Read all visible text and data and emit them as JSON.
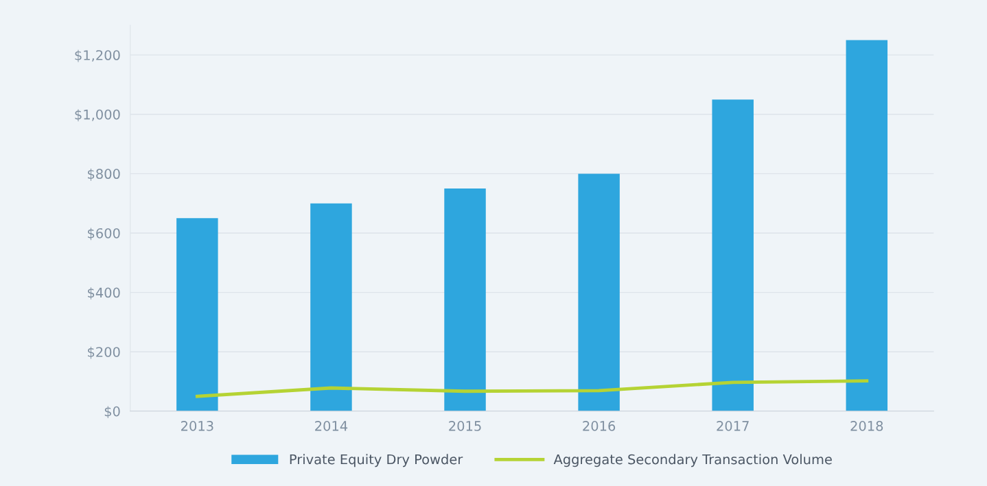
{
  "chart_data": {
    "type": "bar",
    "categories": [
      "2013",
      "2014",
      "2015",
      "2016",
      "2017",
      "2018"
    ],
    "series": [
      {
        "name": "Private Equity Dry Powder",
        "color": "#2ea6de",
        "values": [
          650,
          700,
          750,
          800,
          1050,
          1250
        ]
      },
      {
        "name": "Aggregate Secondary Transaction Volume",
        "color": "#b5d334",
        "type": "line",
        "values": [
          50,
          78,
          67,
          69,
          97,
          102
        ]
      }
    ],
    "ylim": [
      0,
      1300
    ],
    "yticks": [
      {
        "value": 0,
        "label": "$0"
      },
      {
        "value": 200,
        "label": "$200"
      },
      {
        "value": 400,
        "label": "$400"
      },
      {
        "value": 600,
        "label": "$600"
      },
      {
        "value": 800,
        "label": "$800"
      },
      {
        "value": 1000,
        "label": "$1,000"
      },
      {
        "value": 1200,
        "label": "$1,200"
      }
    ],
    "grid": "y",
    "legend": "bottom",
    "marker": "none",
    "line_style": "solid"
  }
}
